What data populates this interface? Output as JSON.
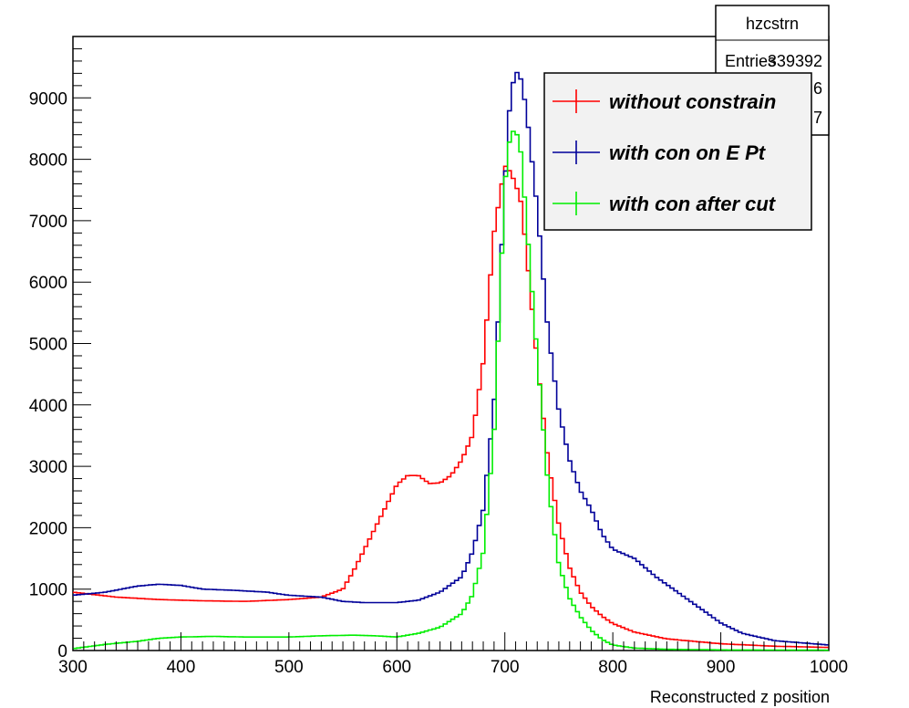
{
  "chart_data": {
    "type": "line",
    "xlabel": "Reconstructed z position",
    "ylabel": "",
    "xlim": [
      300,
      1000
    ],
    "ylim": [
      0,
      10000
    ],
    "x_ticks": [
      "300",
      "400",
      "500",
      "600",
      "700",
      "800",
      "900",
      "1000"
    ],
    "y_ticks": [
      "0",
      "1000",
      "2000",
      "3000",
      "4000",
      "5000",
      "6000",
      "7000",
      "8000",
      "9000"
    ],
    "grid": false,
    "legend_position": "top-right",
    "stats_box": {
      "title": "hzcstrn",
      "rows": [
        {
          "label": "Entries",
          "value": "339392"
        },
        {
          "label": "",
          "value": "653.6"
        },
        {
          "label": "",
          "value": "143.7"
        }
      ]
    },
    "series": [
      {
        "name": "without constrain",
        "color": "#ff0000",
        "x": [
          300,
          340,
          380,
          420,
          460,
          500,
          530,
          550,
          560,
          570,
          580,
          590,
          600,
          610,
          620,
          630,
          640,
          650,
          660,
          670,
          680,
          690,
          700,
          705,
          710,
          715,
          720,
          730,
          740,
          750,
          760,
          770,
          780,
          790,
          800,
          820,
          850,
          900,
          950,
          1000
        ],
        "values": [
          950,
          870,
          830,
          810,
          800,
          830,
          870,
          1000,
          1300,
          1650,
          2000,
          2350,
          2700,
          2850,
          2850,
          2720,
          2730,
          2850,
          3100,
          3500,
          4700,
          6800,
          7900,
          7800,
          7600,
          7300,
          6500,
          4700,
          3100,
          2050,
          1350,
          950,
          720,
          560,
          440,
          300,
          190,
          110,
          70,
          50
        ]
      },
      {
        "name": "with con on E Pt",
        "color": "#000099",
        "x": [
          300,
          330,
          360,
          380,
          400,
          420,
          450,
          480,
          500,
          530,
          550,
          570,
          600,
          620,
          640,
          660,
          670,
          680,
          690,
          700,
          705,
          710,
          715,
          720,
          730,
          740,
          750,
          760,
          770,
          780,
          790,
          800,
          820,
          840,
          860,
          880,
          900,
          920,
          950,
          1000
        ],
        "values": [
          900,
          950,
          1050,
          1080,
          1060,
          1000,
          980,
          950,
          900,
          870,
          800,
          780,
          780,
          820,
          950,
          1200,
          1600,
          2300,
          4000,
          7600,
          9000,
          9450,
          9300,
          8800,
          7200,
          5200,
          3900,
          3100,
          2600,
          2300,
          1900,
          1650,
          1500,
          1200,
          950,
          700,
          450,
          280,
          160,
          90
        ]
      },
      {
        "name": "with con after cut",
        "color": "#00ee00",
        "x": [
          300,
          330,
          360,
          380,
          400,
          430,
          460,
          500,
          530,
          560,
          580,
          600,
          620,
          640,
          660,
          670,
          680,
          690,
          700,
          705,
          710,
          715,
          720,
          730,
          740,
          750,
          760,
          770,
          780,
          790,
          800,
          820,
          850,
          900,
          1000
        ],
        "values": [
          30,
          100,
          150,
          200,
          220,
          230,
          220,
          220,
          240,
          250,
          240,
          220,
          280,
          380,
          600,
          900,
          1600,
          3500,
          7600,
          8400,
          8500,
          8100,
          7000,
          4800,
          2700,
          1400,
          850,
          550,
          330,
          180,
          90,
          40,
          20,
          10,
          5
        ]
      }
    ]
  }
}
